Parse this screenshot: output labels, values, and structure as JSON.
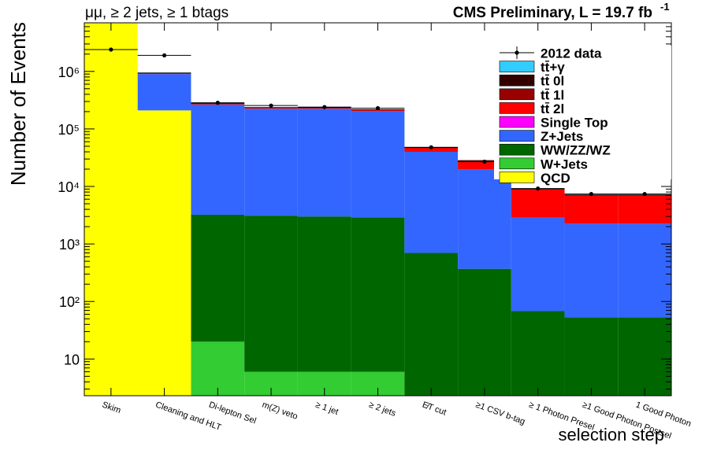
{
  "chart_data": {
    "type": "bar",
    "stacked": true,
    "title_left": "μμ, ≥ 2 jets, ≥ 1 btags",
    "title_right": "CMS Preliminary, L = 19.7 fb",
    "title_right_sup": "-1",
    "ylabel": "Number of Events",
    "xlabel": "selection step",
    "yscale": "log",
    "ylim": [
      2.3,
      7000000
    ],
    "y_tick_labels": [
      "10",
      "10²",
      "10³",
      "10⁴",
      "10⁵",
      "10⁶"
    ],
    "categories": [
      "Skim",
      "Cleaning and HLT",
      "Di-lepton Sel",
      "m(Z) veto",
      "≥ 1 jet",
      "≥ 2 jets",
      "E̸T cut",
      "≥1 CSV b-tag",
      "≥ 1 Photon Presel",
      "≥1 Good Photon Postsel",
      "1 Good Photon"
    ],
    "series": [
      {
        "name": "QCD",
        "color": "#ffff00",
        "values": [
          7000000,
          210000,
          0,
          0,
          0,
          0,
          0,
          0,
          0,
          0,
          0
        ]
      },
      {
        "name": "W+Jets",
        "color": "#33cc33",
        "values": [
          0,
          0,
          20,
          6,
          6,
          6,
          0,
          0,
          0,
          0,
          0
        ]
      },
      {
        "name": "WW/ZZ/WZ",
        "color": "#006600",
        "values": [
          0,
          0,
          3200,
          3100,
          3000,
          2900,
          700,
          370,
          68,
          53,
          53
        ]
      },
      {
        "name": "Z+Jets",
        "color": "#3366ff",
        "values": [
          0,
          690000,
          262000,
          222000,
          222000,
          203000,
          39300,
          19600,
          2800,
          2200,
          2200
        ]
      },
      {
        "name": "Single Top",
        "color": "#ff00ff",
        "values": [
          0,
          0,
          0,
          0,
          0,
          0,
          0,
          0,
          0,
          0,
          0
        ]
      },
      {
        "name": "tt̄ 2l",
        "color": "#ff0000",
        "values": [
          0,
          20000,
          6000,
          6000,
          6000,
          6000,
          7000,
          8000,
          6000,
          4700,
          4700
        ]
      },
      {
        "name": "tt̄ 1l",
        "color": "#990000",
        "values": [
          0,
          10000,
          3000,
          2500,
          2500,
          2000,
          300,
          150,
          100,
          80,
          80
        ]
      },
      {
        "name": "tt̄ 0l",
        "color": "#330000",
        "values": [
          0,
          10000,
          2000,
          1800,
          1600,
          1500,
          150,
          100,
          80,
          60,
          60
        ]
      },
      {
        "name": "tt̄+γ",
        "color": "#33ccff",
        "values": [
          0,
          0,
          0,
          0,
          0,
          0,
          0,
          0,
          0,
          0,
          0
        ]
      }
    ],
    "data": {
      "name": "2012 data",
      "values": [
        2400000,
        1900000,
        285000,
        255000,
        240000,
        230000,
        48000,
        27000,
        9200,
        7400,
        7400
      ]
    },
    "legend_order": [
      "2012 data",
      "tt̄+γ",
      "tt̄ 0l",
      "tt̄ 1l",
      "tt̄ 2l",
      "Single Top",
      "Z+Jets",
      "WW/ZZ/WZ",
      "W+Jets",
      "QCD"
    ],
    "legend_position": "top-right"
  }
}
